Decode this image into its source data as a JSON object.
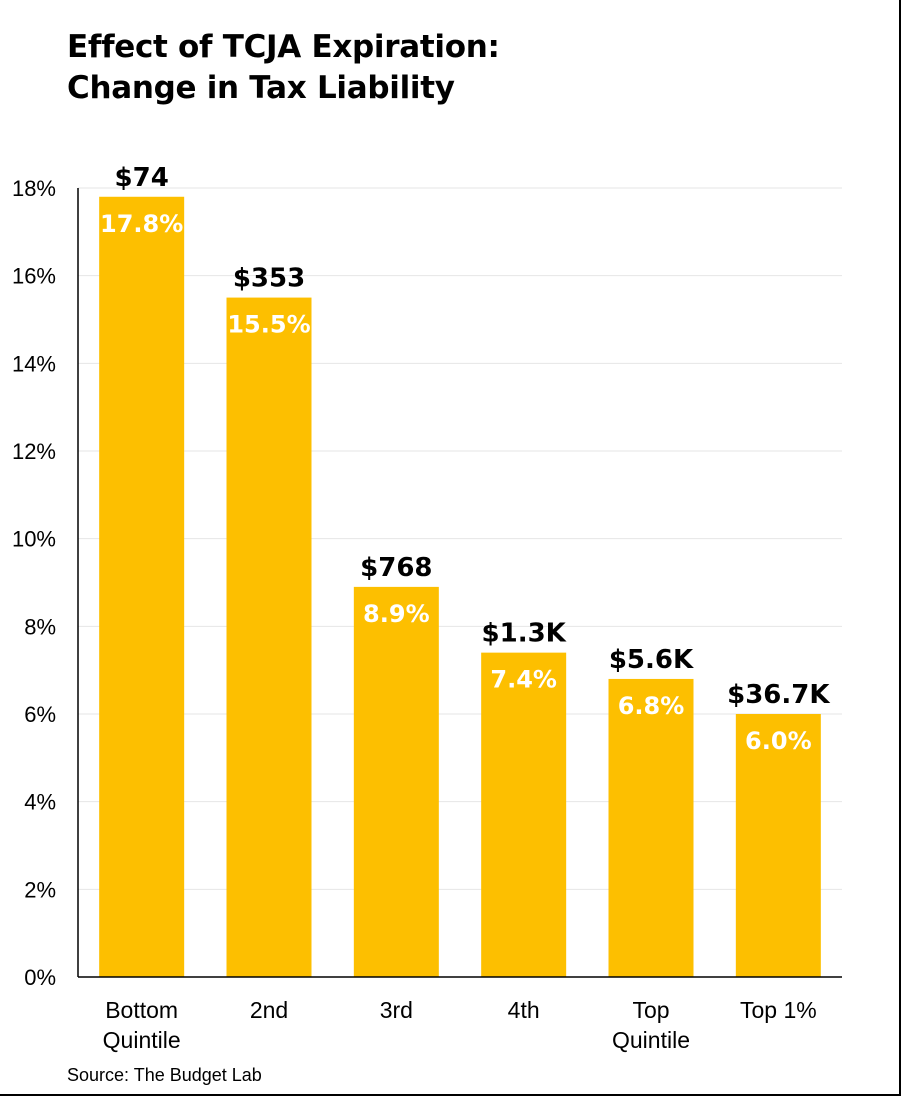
{
  "title_lines": [
    "Effect of TCJA Expiration:",
    "Change in Tax Liability"
  ],
  "source": "Source: The Budget Lab",
  "colors": {
    "bar": "#FDBF00",
    "grid": "#E6E6E6",
    "axis": "#000000",
    "bar_label": "#FFFFFF",
    "top_label": "#000000"
  },
  "chart_data": {
    "type": "bar",
    "title": "Effect of TCJA Expiration: Change in Tax Liability",
    "xlabel": "",
    "ylabel": "",
    "categories": [
      [
        "Bottom",
        "Quintile"
      ],
      [
        "2nd"
      ],
      [
        "3rd"
      ],
      [
        "4th"
      ],
      [
        "Top",
        "Quintile"
      ],
      [
        "Top 1%"
      ]
    ],
    "values": [
      17.8,
      15.5,
      8.9,
      7.4,
      6.8,
      6.0
    ],
    "value_labels": [
      "17.8%",
      "15.5%",
      "8.9%",
      "7.4%",
      "6.8%",
      "6.0%"
    ],
    "dollar_labels": [
      "$74",
      "$353",
      "$768",
      "$1.3K",
      "$5.6K",
      "$36.7K"
    ],
    "ylim": [
      0,
      18
    ],
    "yticks": [
      0,
      2,
      4,
      6,
      8,
      10,
      12,
      14,
      16,
      18
    ],
    "ytick_labels": [
      "0%",
      "2%",
      "4%",
      "6%",
      "8%",
      "10%",
      "12%",
      "14%",
      "16%",
      "18%"
    ],
    "grid": true
  }
}
